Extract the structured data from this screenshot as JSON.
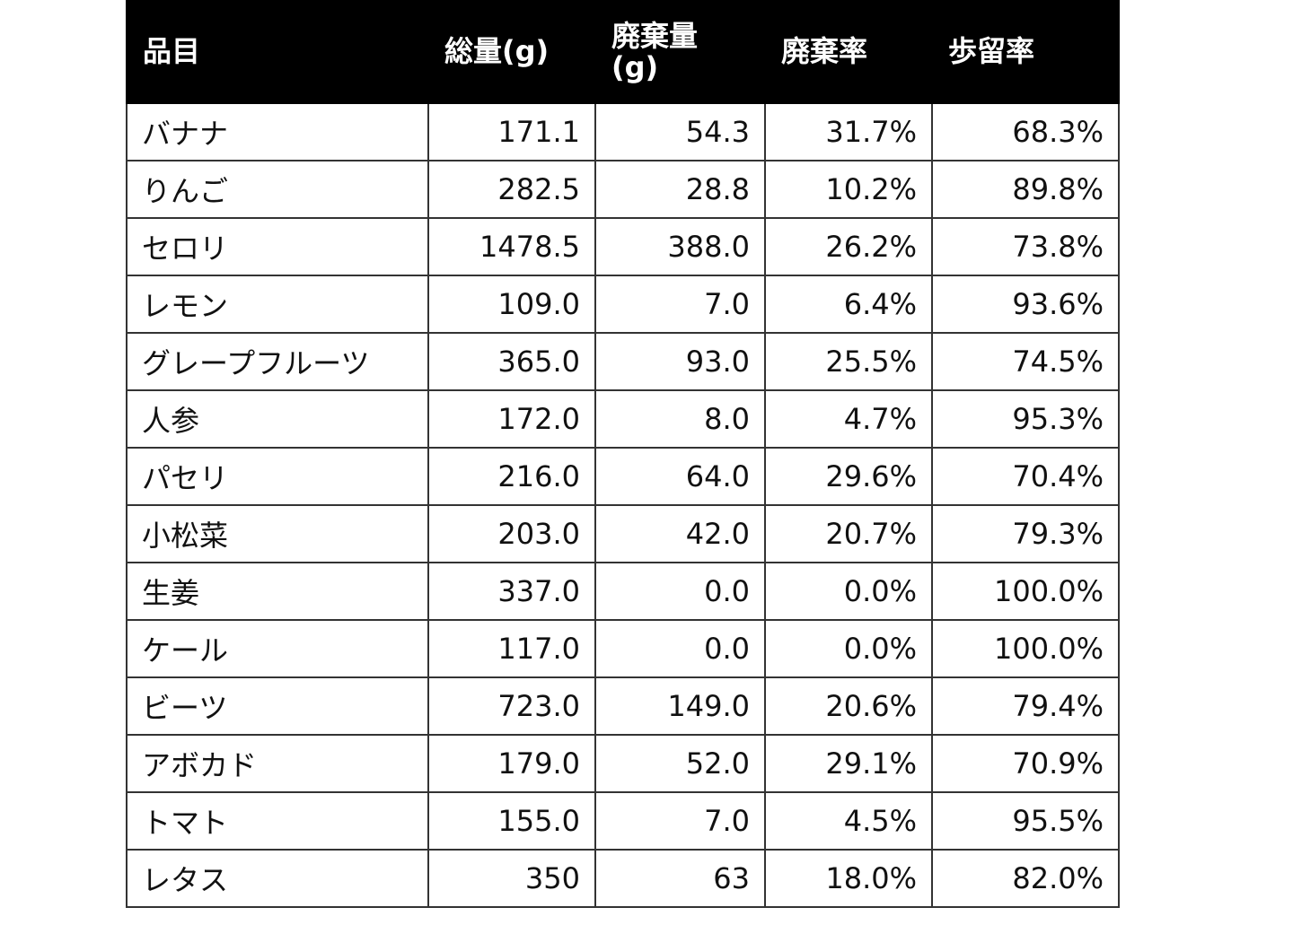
{
  "table": {
    "header": [
      "品目",
      "総量(g)",
      "廃棄量(g)",
      "廃棄率",
      "歩留率"
    ],
    "rows": [
      [
        "バナナ",
        "171.1",
        "54.3",
        "31.7%",
        "68.3%"
      ],
      [
        "りんご",
        "282.5",
        "28.8",
        "10.2%",
        "89.8%"
      ],
      [
        "セロリ",
        "1478.5",
        "388.0",
        "26.2%",
        "73.8%"
      ],
      [
        "レモン",
        "109.0",
        "7.0",
        "6.4%",
        "93.6%"
      ],
      [
        "グレープフルーツ",
        "365.0",
        "93.0",
        "25.5%",
        "74.5%"
      ],
      [
        "人参",
        "172.0",
        "8.0",
        "4.7%",
        "95.3%"
      ],
      [
        "パセリ",
        "216.0",
        "64.0",
        "29.6%",
        "70.4%"
      ],
      [
        "小松菜",
        "203.0",
        "42.0",
        "20.7%",
        "79.3%"
      ],
      [
        "生姜",
        "337.0",
        "0.0",
        "0.0%",
        "100.0%"
      ],
      [
        "ケール",
        "117.0",
        "0.0",
        "0.0%",
        "100.0%"
      ],
      [
        "ビーツ",
        "723.0",
        "149.0",
        "20.6%",
        "79.4%"
      ],
      [
        "アボカド",
        "179.0",
        "52.0",
        "29.1%",
        "70.9%"
      ],
      [
        "トマト",
        "155.0",
        "7.0",
        "4.5%",
        "95.5%"
      ],
      [
        "レタス",
        "350",
        "63",
        "18.0%",
        "82.0%"
      ]
    ]
  }
}
